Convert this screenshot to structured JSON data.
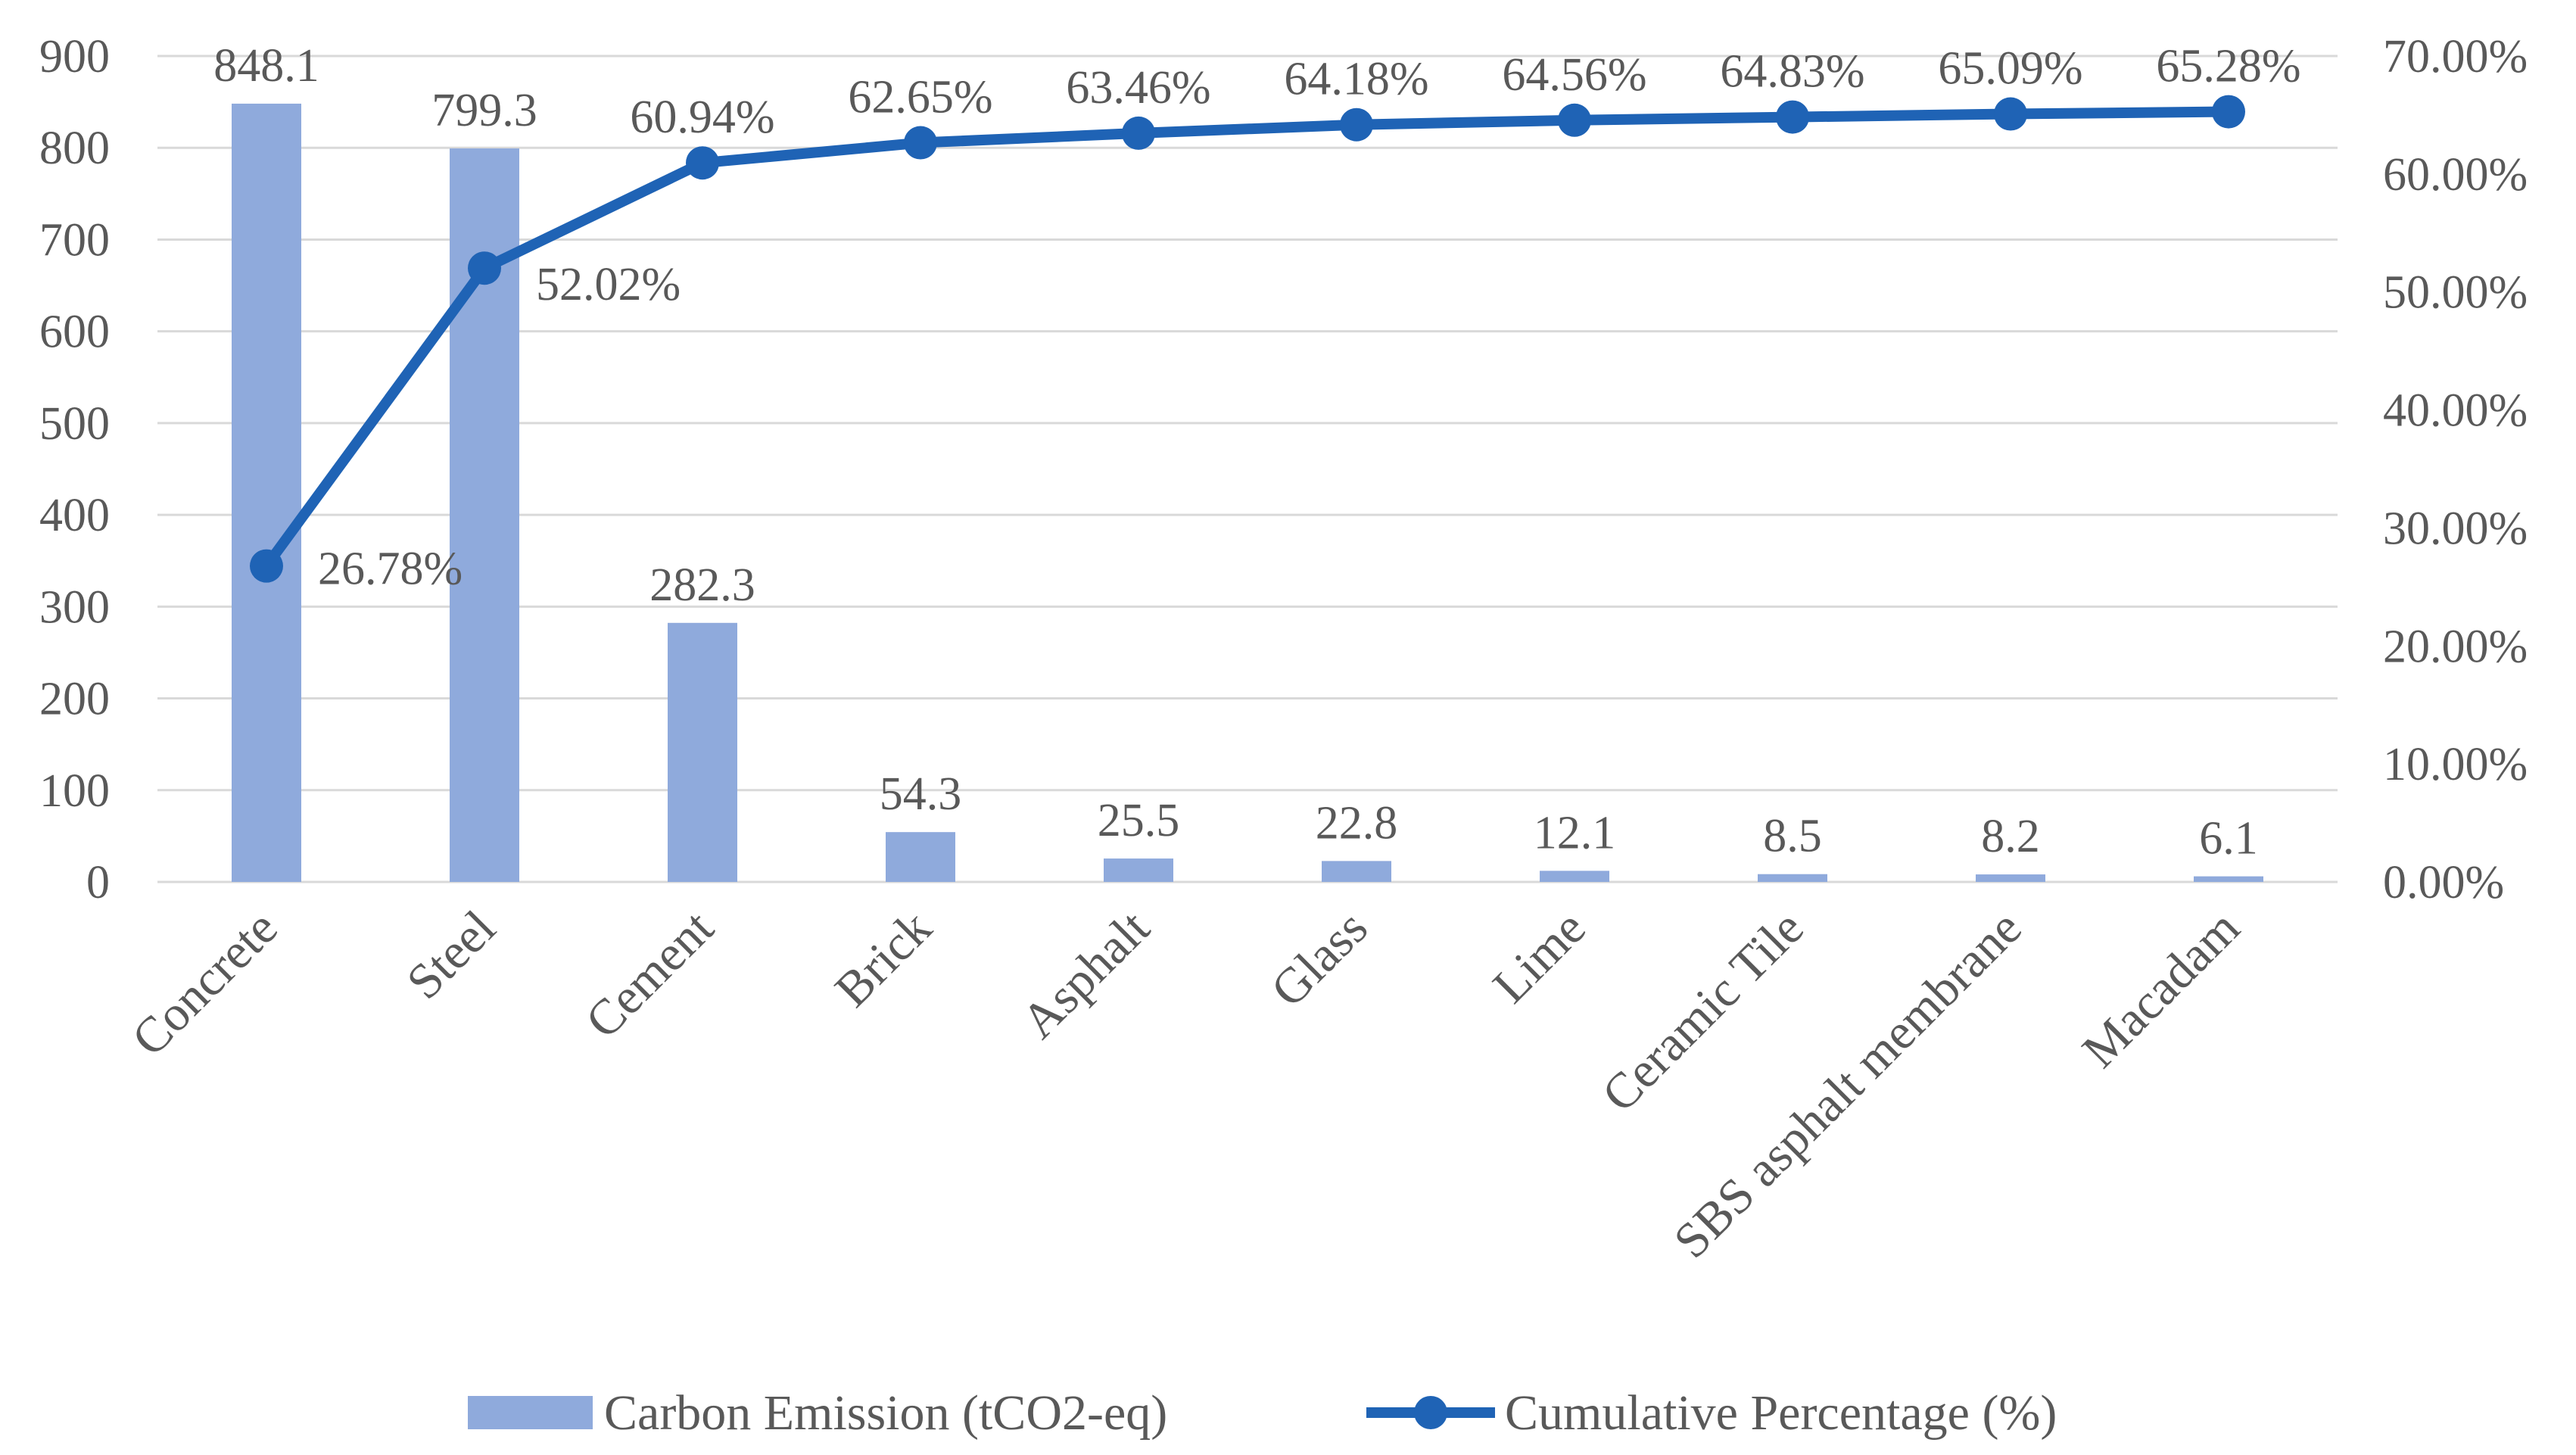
{
  "chart_data": {
    "type": "bar",
    "categories": [
      "Concrete",
      "Steel",
      "Cement",
      "Brick",
      "Asphalt",
      "Glass",
      "Lime",
      "Ceramic Tile",
      "SBS asphalt membrane",
      "Macadam"
    ],
    "series": [
      {
        "name": "Carbon Emission (tCO2-eq)",
        "type": "bar",
        "axis": "left",
        "values": [
          848.1,
          799.3,
          282.3,
          54.3,
          25.5,
          22.8,
          12.1,
          8.5,
          8.2,
          6.1
        ],
        "labels": [
          "848.1",
          "799.3",
          "282.3",
          "54.3",
          "25.5",
          "22.8",
          "12.1",
          "8.5",
          "8.2",
          "6.1"
        ]
      },
      {
        "name": "Cumulative Percentage (%)",
        "type": "line",
        "axis": "right",
        "values": [
          26.78,
          52.02,
          60.94,
          62.65,
          63.46,
          64.18,
          64.56,
          64.83,
          65.09,
          65.28
        ],
        "labels": [
          "26.78%",
          "52.02%",
          "60.94%",
          "62.65%",
          "63.46%",
          "64.18%",
          "64.56%",
          "64.83%",
          "65.09%",
          "65.28%"
        ]
      }
    ],
    "y_left": {
      "range": [
        0,
        900
      ],
      "ticks": [
        "0",
        "100",
        "200",
        "300",
        "400",
        "500",
        "600",
        "700",
        "800",
        "900"
      ]
    },
    "y_right": {
      "range": [
        0,
        70
      ],
      "ticks": [
        "0.00%",
        "10.00%",
        "20.00%",
        "30.00%",
        "40.00%",
        "50.00%",
        "60.00%",
        "70.00%"
      ]
    },
    "title": "",
    "xlabel": "",
    "ylabel": "",
    "grid": true,
    "legend_position": "bottom",
    "colors": {
      "bar": "#8FAADC",
      "line": "#1F63B5",
      "grid": "#D9D9D9",
      "text": "#595959"
    }
  }
}
